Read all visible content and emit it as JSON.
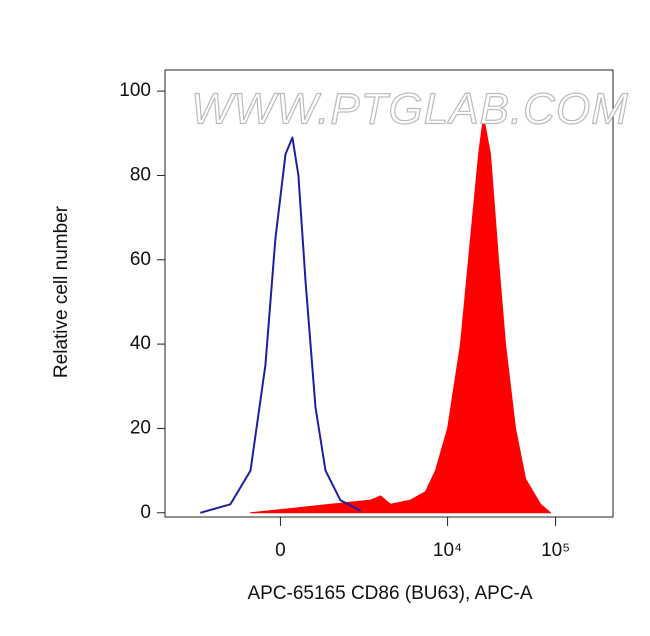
{
  "chart_data": {
    "type": "histogram-overlay",
    "x_label": "APC-65165 CD86 (BU63), APC-A",
    "y_label": "Relative cell number",
    "watermark": "WWW.PTGLAB.COM",
    "xscale": "biexponential",
    "xlim": [
      -3300,
      340000
    ],
    "xticks": [
      {
        "value": 0,
        "label": "0"
      },
      {
        "value": 10000,
        "label": "10⁴"
      },
      {
        "value": 100000,
        "label": "10⁵"
      }
    ],
    "ylim": [
      -1,
      105
    ],
    "yticks": [
      0,
      20,
      40,
      60,
      80,
      100
    ],
    "series": [
      {
        "color": "#1f1f9e",
        "style": "line",
        "x": [
          -1515,
          -727,
          -388,
          -185,
          -61,
          61,
          147,
          223,
          318,
          465,
          634,
          937,
          1515
        ],
        "values": [
          0,
          2,
          10,
          35,
          65,
          85,
          89,
          80,
          55,
          25,
          10,
          3,
          0.5
        ]
      },
      {
        "color": "#ff0000",
        "style": "area",
        "x": [
          -388,
          122,
          727,
          1897,
          2363,
          2937,
          4521,
          6242,
          7730,
          10000,
          13180,
          16300,
          19370,
          21530,
          25000,
          29650,
          34420,
          42600,
          52770,
          72700,
          89700
        ],
        "values": [
          0,
          1,
          2,
          3,
          4,
          2,
          3,
          5,
          10,
          20,
          40,
          65,
          85,
          94,
          85,
          60,
          40,
          20,
          8,
          2,
          0
        ]
      }
    ]
  }
}
